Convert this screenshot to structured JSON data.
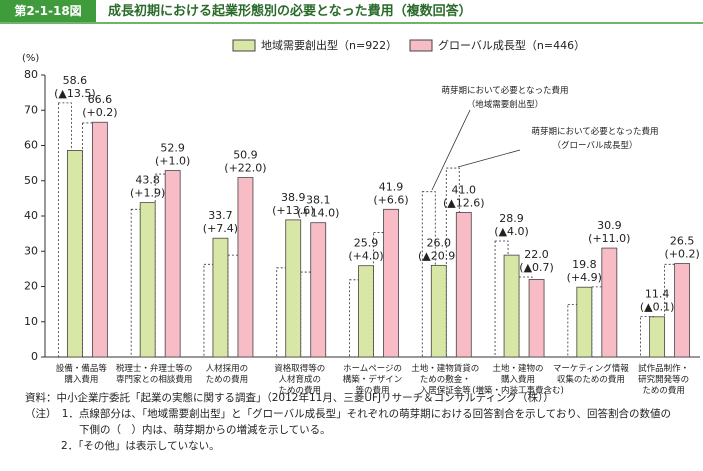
{
  "chart_data": {
    "type": "bar",
    "figure_label": "第2-1-18図",
    "title": "成長初期における起業形態別の必要となった費用（複数回答）",
    "y_unit": "(%)",
    "categories": [
      "設備・備品等\n購入費用",
      "税理士・弁理士等の\n専門家との相談費用",
      "人材採用の\nための費用",
      "資格取得等の\n人材育成の\nための費用",
      "ホームページの\n構築・デザイン\n等の費用",
      "土地・建物賃貸の\nための敷金・\n入居保証金等",
      "土地・建物の\n購入費用\n(増築・内装工事費含む)",
      "マーケティング情報\n収集のための費用",
      "試作品制作・\n研究開発等の\nための費用"
    ],
    "series": [
      {
        "name": "地域需要創出型（n=922）",
        "color": "#d8e7a6",
        "values": [
          58.6,
          43.8,
          33.7,
          38.9,
          25.9,
          26.0,
          28.9,
          19.8,
          11.4
        ],
        "value_labels": [
          "58.6",
          "43.8",
          "33.7",
          "38.9",
          "25.9",
          "26.0",
          "28.9",
          "19.8",
          "11.4"
        ],
        "change_labels": [
          "(▲13.5)",
          "(+1.9)",
          "(+7.4)",
          "(+13.6)",
          "(+4.0)",
          "(▲20.9)",
          "(▲4.0)",
          "(+4.9)",
          "(▲0.1)"
        ],
        "base_values": [
          72.1,
          41.9,
          26.3,
          25.3,
          21.9,
          46.9,
          32.9,
          14.9,
          11.5
        ]
      },
      {
        "name": "グローバル成長型（n=446）",
        "color": "#f7bcc5",
        "values": [
          66.6,
          52.9,
          50.9,
          38.1,
          41.9,
          41.0,
          22.0,
          30.9,
          26.5
        ],
        "value_labels": [
          "66.6",
          "52.9",
          "50.9",
          "38.1",
          "41.9",
          "41.0",
          "22.0",
          "30.9",
          "26.5"
        ],
        "change_labels": [
          "(+0.2)",
          "(+1.0)",
          "(+22.0)",
          "(+14.0)",
          "(+6.6)",
          "(▲12.6)",
          "(▲0.7)",
          "(+11.0)",
          "(+0.2)"
        ],
        "base_values": [
          66.4,
          51.9,
          28.9,
          24.1,
          35.3,
          53.6,
          22.7,
          19.9,
          26.3
        ]
      }
    ],
    "annotations": [
      "萌芽期において必要となった費用\n（地域需要創出型）",
      "萌芽期において必要となった費用\n（グローバル成長型）"
    ],
    "ylim": [
      0,
      80
    ],
    "yticks": [
      0,
      10,
      20,
      30,
      40,
      50,
      60,
      70,
      80
    ],
    "source": "資料：中小企業庁委託「起業の実態に関する調査」（2012年11月、三菱UFJリサーチ＆コンサルティング（株））",
    "notes": [
      "（注）　1．点線部分は、「地域需要創出型」と「グローバル成長型」それぞれの萌芽期における回答割合を示しており、回答割合の数値の",
      "下側の（　）内は、萌芽期からの増減を示している。",
      "2．「その他」は表示していない。"
    ]
  }
}
